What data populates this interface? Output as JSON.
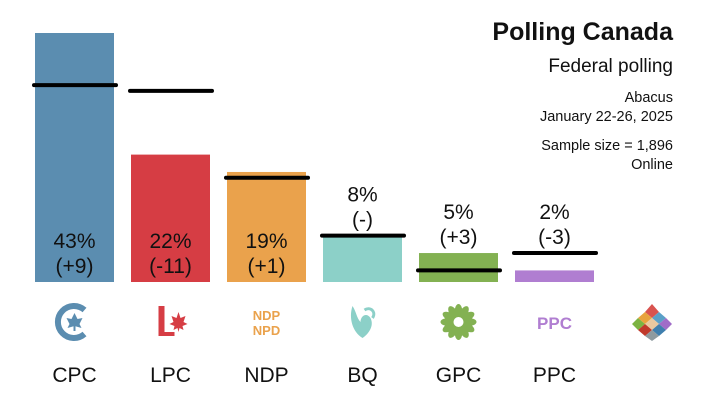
{
  "header": {
    "title": "Polling Canada",
    "subtitle": "Federal polling",
    "pollster": "Abacus",
    "dates": "January 22-26, 2025",
    "sample": "Sample size = 1,896",
    "mode": "Online"
  },
  "chart_data": {
    "type": "bar",
    "categories": [
      "CPC",
      "LPC",
      "NDP",
      "BQ",
      "GPC",
      "PPC"
    ],
    "series": [
      {
        "values": [
          43,
          22,
          19,
          8,
          5,
          2
        ]
      },
      {
        "values": [
          34,
          33,
          18,
          8,
          2,
          5
        ]
      }
    ],
    "value_labels": [
      "43%",
      "22%",
      "19%",
      "8%",
      "5%",
      "2%"
    ],
    "change_labels": [
      "(+9)",
      "(-11)",
      "(+1)",
      "(-)",
      "(+3)",
      "(-3)"
    ],
    "colors": [
      "#5b8db0",
      "#d63d44",
      "#eaa24c",
      "#8cd0c8",
      "#83b152",
      "#b07ed1"
    ],
    "logos": [
      "cpc-logo-icon",
      "lpc-logo-icon",
      "ndp-logo-icon",
      "bq-logo-icon",
      "gpc-logo-icon",
      "ppc-logo-icon"
    ],
    "ndp_logo_text": [
      "NDP",
      "NPD"
    ],
    "ppc_logo_text": "PPC",
    "ylim": [
      0,
      43
    ],
    "grid": false,
    "legend": "none"
  }
}
